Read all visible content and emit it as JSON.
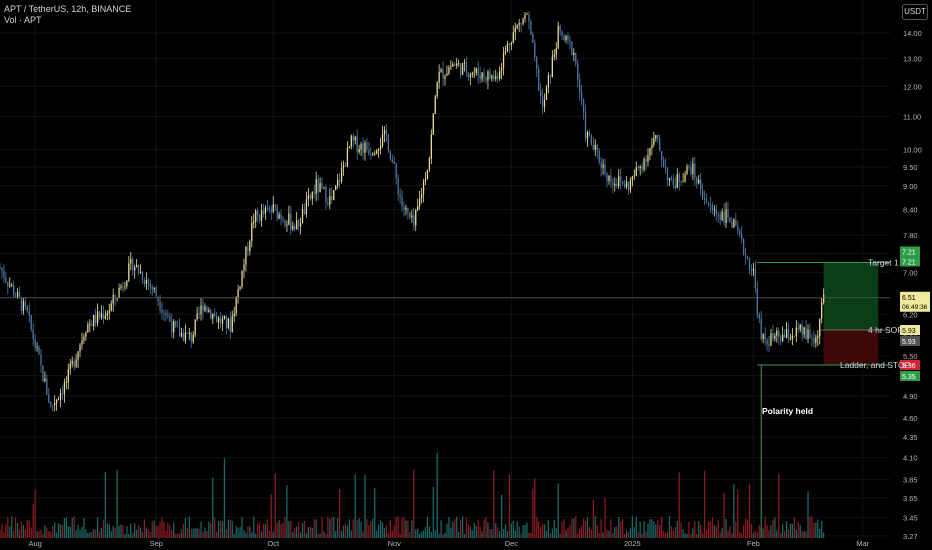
{
  "header": {
    "symbol_line": "APT / TetherUS, 12h, BINANCE",
    "volume_line": "Vol · APT",
    "currency_button": "USDT"
  },
  "colors": {
    "up": "#e8dd9a",
    "down": "#4e7ba6",
    "vol_up": "#1f7a78",
    "vol_down": "#a3202a",
    "target_zone": "#0b3d16",
    "stop_zone": "#3d0808",
    "target_label": "#2e9e48",
    "stop_label": "#d3242f",
    "current_label": "#f0ea9b"
  },
  "annotations": {
    "target": "Target 1",
    "sor": "4 hr SOR",
    "stop": "Ladder, and STOP",
    "polarity": "Polarity held"
  },
  "price_labels": {
    "target_a": "7.21",
    "target_b": "7.21",
    "current": "6.51",
    "countdown": "06:49:36",
    "sor_a": "5.93",
    "sor_b": "5.93",
    "stop_a": "5.36",
    "stop_b": "5.35"
  },
  "chart_data": {
    "type": "candlestick",
    "y_scale": "log",
    "ylim": [
      3.25,
      15.4
    ],
    "y_ticks": [
      "14.00",
      "13.00",
      "12.00",
      "11.00",
      "10.00",
      "9.50",
      "9.00",
      "8.40",
      "7.80",
      "7.40",
      "7.00",
      "6.50",
      "6.20",
      "5.80",
      "5.50",
      "5.20",
      "4.90",
      "4.60",
      "4.35",
      "4.10",
      "3.85",
      "3.65",
      "3.45",
      "3.27"
    ],
    "x_ticks": [
      "Aug",
      "Sep",
      "Oct",
      "Nov",
      "Dec",
      "2025",
      "Feb",
      "Mar"
    ],
    "x_range": [
      "2024-07-23",
      "2025-03-08"
    ],
    "price_path": [
      [
        "2024-07-23",
        7.1
      ],
      [
        "2024-07-30",
        6.2
      ],
      [
        "2024-08-05",
        4.75
      ],
      [
        "2024-08-09",
        5.1
      ],
      [
        "2024-08-14",
        6.0
      ],
      [
        "2024-08-20",
        6.3
      ],
      [
        "2024-08-26",
        7.2
      ],
      [
        "2024-08-31",
        6.7
      ],
      [
        "2024-09-06",
        5.9
      ],
      [
        "2024-09-10",
        5.8
      ],
      [
        "2024-09-13",
        6.4
      ],
      [
        "2024-09-17",
        6.1
      ],
      [
        "2024-09-20",
        6.0
      ],
      [
        "2024-09-26",
        8.2
      ],
      [
        "2024-10-01",
        8.4
      ],
      [
        "2024-10-07",
        8.0
      ],
      [
        "2024-10-12",
        9.0
      ],
      [
        "2024-10-16",
        8.6
      ],
      [
        "2024-10-21",
        10.2
      ],
      [
        "2024-10-26",
        10.0
      ],
      [
        "2024-10-30",
        10.4
      ],
      [
        "2024-11-03",
        8.5
      ],
      [
        "2024-11-06",
        8.0
      ],
      [
        "2024-11-10",
        9.8
      ],
      [
        "2024-11-12",
        12.3
      ],
      [
        "2024-11-16",
        12.8
      ],
      [
        "2024-11-21",
        12.5
      ],
      [
        "2024-11-27",
        12.3
      ],
      [
        "2024-12-01",
        13.9
      ],
      [
        "2024-12-05",
        14.8
      ],
      [
        "2024-12-09",
        11.2
      ],
      [
        "2024-12-13",
        14.0
      ],
      [
        "2024-12-17",
        13.3
      ],
      [
        "2024-12-20",
        10.5
      ],
      [
        "2024-12-26",
        9.2
      ],
      [
        "2024-12-31",
        9.0
      ],
      [
        "2025-01-07",
        10.3
      ],
      [
        "2025-01-11",
        9.0
      ],
      [
        "2025-01-16",
        9.5
      ],
      [
        "2025-01-21",
        8.4
      ],
      [
        "2025-01-26",
        8.2
      ],
      [
        "2025-02-01",
        7.0
      ],
      [
        "2025-02-03",
        5.75
      ],
      [
        "2025-02-08",
        5.8
      ],
      [
        "2025-02-13",
        5.9
      ],
      [
        "2025-02-17",
        5.75
      ],
      [
        "2025-02-19",
        6.5
      ]
    ],
    "levels": {
      "target_1": 7.21,
      "current": 6.51,
      "sor_4h": 5.93,
      "stop": 5.36,
      "stop_lower": 5.35
    },
    "annotations": [
      "Target 1",
      "4 hr SOR",
      "Ladder, and STOP",
      "Polarity held"
    ]
  }
}
